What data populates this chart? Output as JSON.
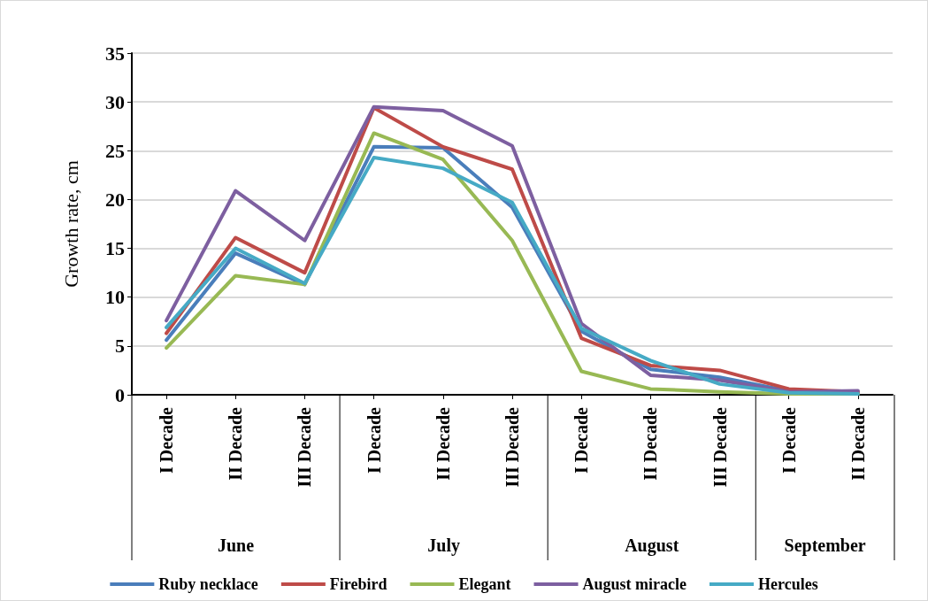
{
  "chart_data": {
    "type": "line",
    "ylabel": "Growth rate, cm",
    "categories": [
      "I Decade",
      "II Decade",
      "III Decade",
      "I Decade",
      "II Decade",
      "III Decade",
      "I Decade",
      "II Decade",
      "III Decade",
      "I Decade",
      "II Decade"
    ],
    "annotations": [
      "June",
      "July",
      "August",
      "September"
    ],
    "series": [
      {
        "name": "Ruby necklace",
        "color": "#4a7ebb",
        "values": [
          5.6,
          14.5,
          11.3,
          25.4,
          25.3,
          19.2,
          6.5,
          2.6,
          1.8,
          0.4,
          0.2
        ]
      },
      {
        "name": "Firebird",
        "color": "#be4b48",
        "values": [
          6.3,
          16.1,
          12.5,
          29.4,
          25.4,
          23.1,
          5.8,
          3.0,
          2.5,
          0.6,
          0.3
        ]
      },
      {
        "name": "Elegant",
        "color": "#98b954",
        "values": [
          4.8,
          12.2,
          11.3,
          26.8,
          24.1,
          15.8,
          2.4,
          0.6,
          0.3,
          0.1,
          0.1
        ]
      },
      {
        "name": "August miracle",
        "color": "#7d5fa0",
        "values": [
          7.6,
          20.9,
          15.8,
          29.5,
          29.1,
          25.5,
          7.3,
          2.0,
          1.5,
          0.3,
          0.4
        ]
      },
      {
        "name": "Hercules",
        "color": "#46aac5",
        "values": [
          6.9,
          15.0,
          11.4,
          24.3,
          23.2,
          19.7,
          6.8,
          3.5,
          1.1,
          0.2,
          0.1
        ]
      }
    ],
    "ylim": [
      0,
      35
    ],
    "yticks": [
      0,
      5,
      10,
      15,
      20,
      25,
      30,
      35
    ],
    "grid": "y",
    "legend": "bottom",
    "marker": "none",
    "line_style": "solid"
  }
}
